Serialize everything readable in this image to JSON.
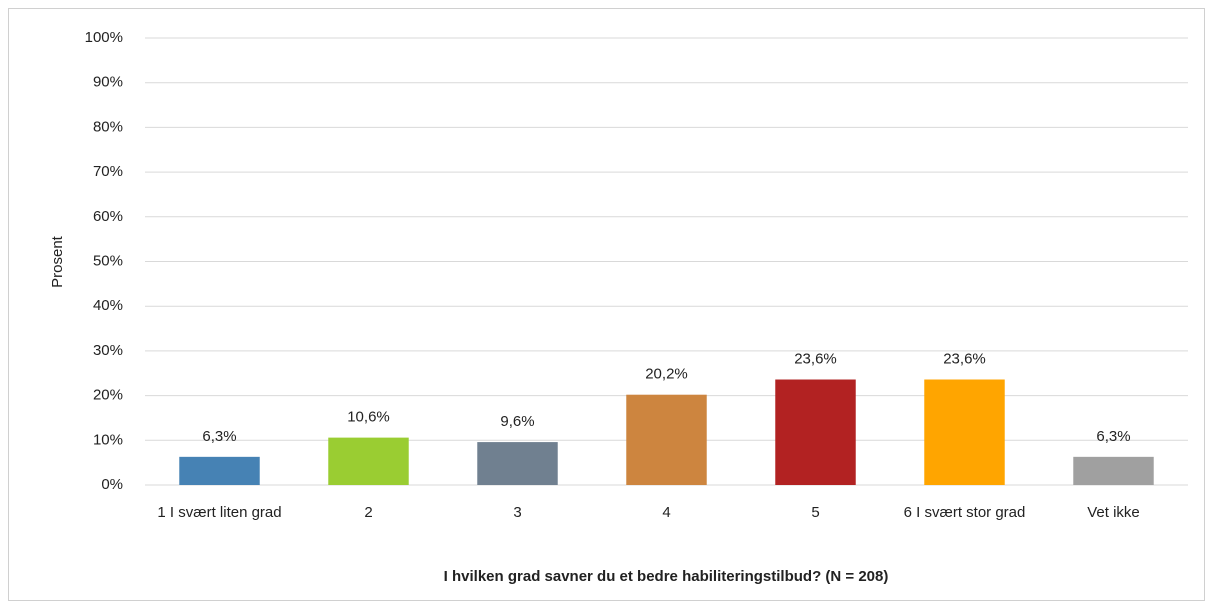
{
  "chart_data": {
    "type": "bar",
    "categories": [
      "1 I svært liten grad",
      "2",
      "3",
      "4",
      "5",
      "6 I svært stor grad",
      "Vet ikke"
    ],
    "values": [
      6.3,
      10.6,
      9.6,
      20.2,
      23.6,
      23.6,
      6.3
    ],
    "value_labels": [
      "6,3%",
      "10,6%",
      "9,6%",
      "20,2%",
      "23,6%",
      "23,6%",
      "6,3%"
    ],
    "colors": [
      "#4682b4",
      "#9acd32",
      "#708090",
      "#cd853f",
      "#b22222",
      "#ffa500",
      "#a0a0a0"
    ],
    "ylim": [
      0,
      100
    ],
    "yticks": [
      {
        "value": 0,
        "label": "0%"
      },
      {
        "value": 10,
        "label": "10%"
      },
      {
        "value": 20,
        "label": "20%"
      },
      {
        "value": 30,
        "label": "30%"
      },
      {
        "value": 40,
        "label": "40%"
      },
      {
        "value": 50,
        "label": "50%"
      },
      {
        "value": 60,
        "label": "60%"
      },
      {
        "value": 70,
        "label": "70%"
      },
      {
        "value": 80,
        "label": "80%"
      },
      {
        "value": 90,
        "label": "90%"
      },
      {
        "value": 100,
        "label": "100%"
      }
    ],
    "ylabel": "Prosent",
    "xlabel": "I hvilken grad savner du et bedre habiliteringstilbud? (N = 208)",
    "grid": true
  }
}
